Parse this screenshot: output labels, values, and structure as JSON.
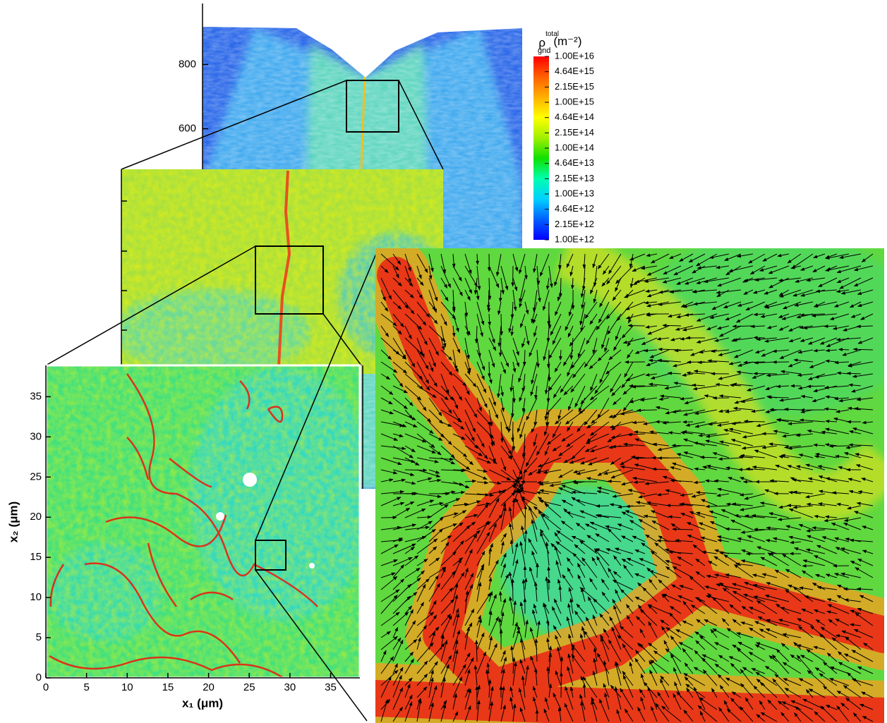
{
  "chart_data": [
    {
      "type": "heatmap",
      "ylim": [
        480,
        990
      ],
      "yticks": [
        600,
        800
      ]
    },
    {
      "type": "colorbar",
      "title_symbol": "ρ",
      "title_sup": "total",
      "title_sub": "gnd",
      "title_unit": "(m⁻²)",
      "log_scale": true,
      "ylim": [
        1000000000000.0,
        1e+16
      ],
      "yticks": [
        {
          "value": 1e+16,
          "label": "1.00E+16"
        },
        {
          "value": 4640000000000000.0,
          "label": "4.64E+15"
        },
        {
          "value": 2150000000000000.0,
          "label": "2.15E+15"
        },
        {
          "value": 1000000000000000.0,
          "label": "1.00E+15"
        },
        {
          "value": 464000000000000.0,
          "label": "4.64E+14"
        },
        {
          "value": 215000000000000.0,
          "label": "2.15E+14"
        },
        {
          "value": 100000000000000.0,
          "label": "1.00E+14"
        },
        {
          "value": 46400000000000.0,
          "label": "4.64E+13"
        },
        {
          "value": 21500000000000.0,
          "label": "2.15E+13"
        },
        {
          "value": 10000000000000.0,
          "label": "1.00E+13"
        },
        {
          "value": 4640000000000.0,
          "label": "4.64E+12"
        },
        {
          "value": 2150000000000.0,
          "label": "2.15E+12"
        },
        {
          "value": 1000000000000.0,
          "label": "1.00E+12"
        }
      ],
      "colors": [
        "#0000ff",
        "#0060ff",
        "#00d0ff",
        "#00ffb0",
        "#10e000",
        "#a0f000",
        "#ffff00",
        "#ffb000",
        "#ff6000",
        "#ff0000"
      ]
    },
    {
      "type": "heatmap",
      "xlabel": "x₁ (μm)",
      "ylabel": "x₂ (μm)",
      "xlim": [
        0,
        38.6
      ],
      "ylim": [
        0,
        38.9
      ],
      "xticks": [
        0,
        5,
        10,
        15,
        20,
        25,
        30,
        35
      ],
      "yticks": [
        0,
        5,
        10,
        15,
        20,
        25,
        30,
        35
      ]
    }
  ]
}
